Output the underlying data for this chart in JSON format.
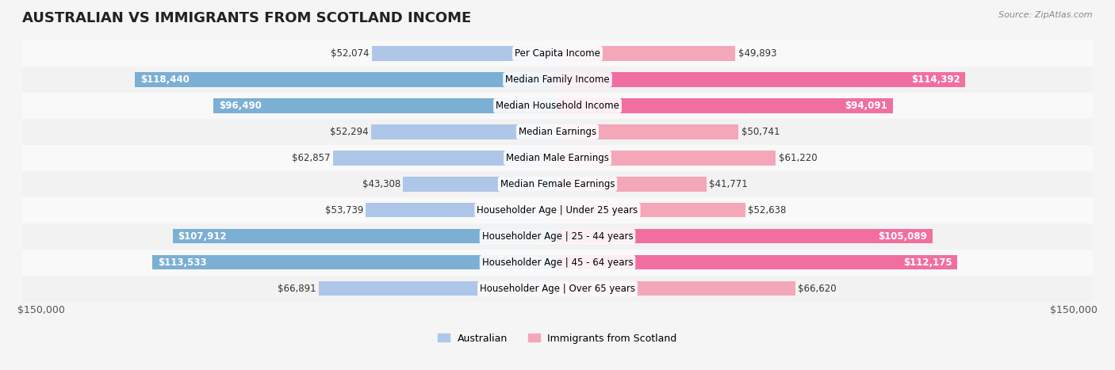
{
  "title": "AUSTRALIAN VS IMMIGRANTS FROM SCOTLAND INCOME",
  "source": "Source: ZipAtlas.com",
  "max_value": 150000,
  "categories": [
    "Per Capita Income",
    "Median Family Income",
    "Median Household Income",
    "Median Earnings",
    "Median Male Earnings",
    "Median Female Earnings",
    "Householder Age | Under 25 years",
    "Householder Age | 25 - 44 years",
    "Householder Age | 45 - 64 years",
    "Householder Age | Over 65 years"
  ],
  "australian_values": [
    52074,
    118440,
    96490,
    52294,
    62857,
    43308,
    53739,
    107912,
    113533,
    66891
  ],
  "scotland_values": [
    49893,
    114392,
    94091,
    50741,
    61220,
    41771,
    52638,
    105089,
    112175,
    66620
  ],
  "australian_labels": [
    "$52,074",
    "$118,440",
    "$96,490",
    "$52,294",
    "$62,857",
    "$43,308",
    "$53,739",
    "$107,912",
    "$113,533",
    "$66,891"
  ],
  "scotland_labels": [
    "$49,893",
    "$114,392",
    "$94,091",
    "$50,741",
    "$61,220",
    "$41,771",
    "$52,638",
    "$105,089",
    "$112,175",
    "$66,620"
  ],
  "australian_color_low": "#aec6e8",
  "australian_color_high": "#7bafd4",
  "scotland_color_low": "#f4a7b9",
  "scotland_color_high": "#f06fa0",
  "label_color_threshold": 80000,
  "background_color": "#f5f5f5",
  "row_bg_color": "#ffffff",
  "row_alt_bg_color": "#f0f0f0",
  "title_fontsize": 13,
  "label_fontsize": 8.5,
  "category_fontsize": 8.5,
  "legend_fontsize": 9,
  "x_label_left": "$150,000",
  "x_label_right": "$150,000"
}
